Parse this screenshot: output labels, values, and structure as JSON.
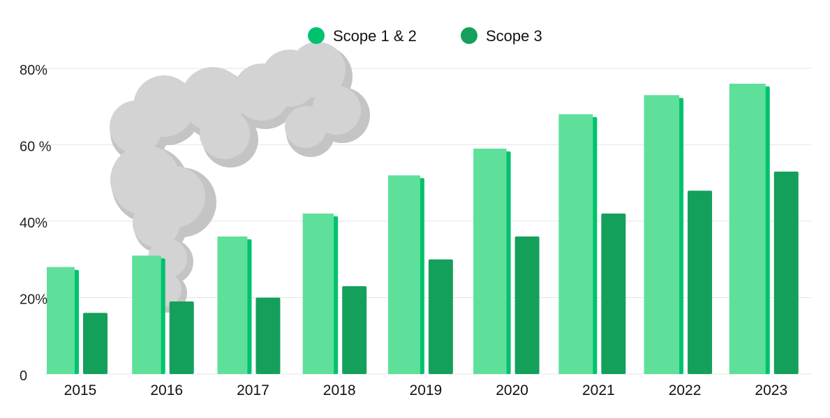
{
  "chart_data": {
    "type": "bar",
    "categories": [
      "2015",
      "2016",
      "2017",
      "2018",
      "2019",
      "2020",
      "2021",
      "2022",
      "2023"
    ],
    "series": [
      {
        "name": "Scope 1 & 2",
        "values": [
          28,
          31,
          36,
          42,
          52,
          59,
          68,
          73,
          76
        ]
      },
      {
        "name": "Scope 3",
        "values": [
          16,
          19,
          20,
          23,
          30,
          36,
          42,
          48,
          53
        ]
      }
    ],
    "yticks": [
      {
        "value": 0,
        "label": "0"
      },
      {
        "value": 20,
        "label": "20%"
      },
      {
        "value": 40,
        "label": "40%"
      },
      {
        "value": 60,
        "label": "60 %"
      },
      {
        "value": 80,
        "label": "80%"
      }
    ],
    "ylim": [
      0,
      80
    ],
    "grid": true,
    "legend": "top-center",
    "colors": {
      "scope12_front": "#5ee09a",
      "scope12_side": "#00c26e",
      "scope3": "#14a05a",
      "grid": "#e4e4e4",
      "smoke": "#d3d3d3",
      "smoke_shadow": "#c4c4c4",
      "legend_scope12": "#00c26e",
      "legend_scope3": "#14a05a"
    }
  }
}
